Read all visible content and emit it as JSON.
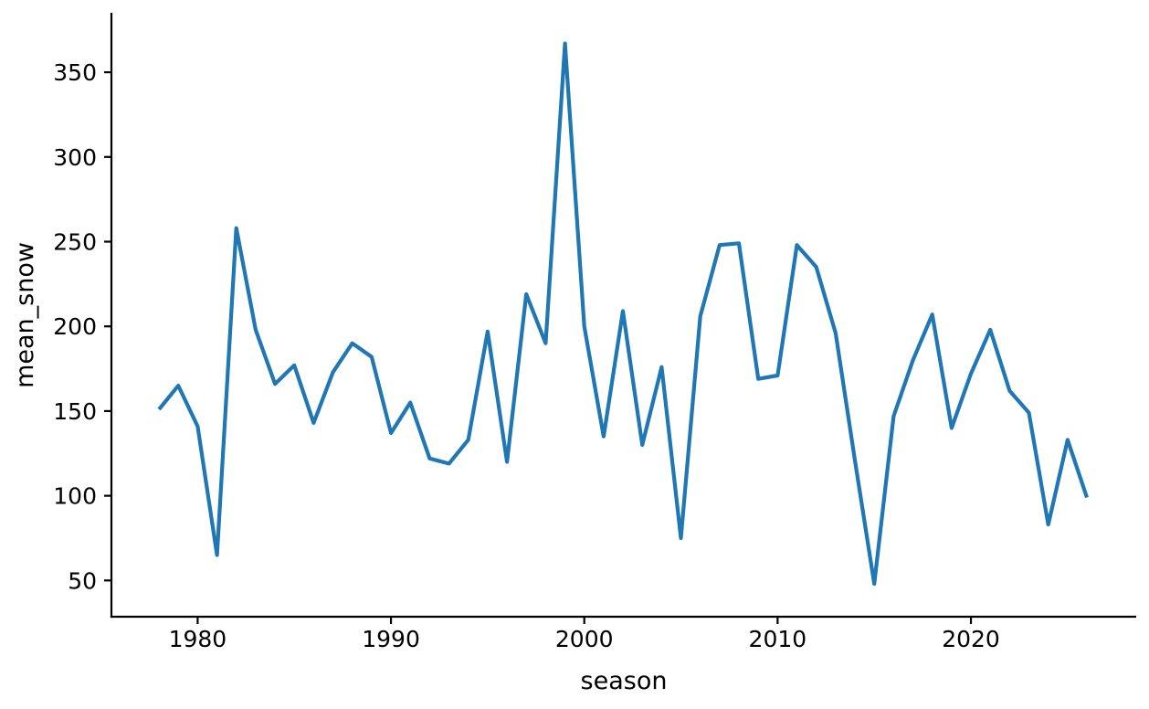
{
  "figure": {
    "background": "#ffffff",
    "text_color": "#000000"
  },
  "chart_data": {
    "type": "line",
    "title": "",
    "xlabel": "season",
    "ylabel": "mean_snow",
    "line_color": "#1f77b4",
    "grid": false,
    "legend": null,
    "x": [
      1978,
      1979,
      1980,
      1981,
      1982,
      1983,
      1984,
      1985,
      1986,
      1987,
      1988,
      1989,
      1990,
      1991,
      1992,
      1993,
      1994,
      1995,
      1996,
      1997,
      1998,
      1999,
      2000,
      2001,
      2002,
      2003,
      2004,
      2005,
      2006,
      2007,
      2008,
      2009,
      2010,
      2011,
      2012,
      2013,
      2014,
      2015,
      2016,
      2017,
      2018,
      2019,
      2020,
      2021,
      2022,
      2023,
      2024,
      2025,
      2026
    ],
    "values": [
      151,
      165,
      141,
      65,
      258,
      198,
      166,
      177,
      143,
      173,
      190,
      182,
      137,
      155,
      122,
      119,
      133,
      197,
      120,
      219,
      190,
      367,
      200,
      135,
      209,
      130,
      176,
      75,
      206,
      248,
      249,
      169,
      171,
      248,
      235,
      196,
      121,
      48,
      147,
      180,
      207,
      140,
      172,
      198,
      162,
      149,
      83,
      133,
      99
    ],
    "xticks": [
      1980,
      1990,
      2000,
      2010,
      2020
    ],
    "yticks": [
      50,
      100,
      150,
      200,
      250,
      300,
      350
    ],
    "xlim": [
      1975.54,
      2028.55
    ],
    "ylim": [
      28.6,
      385.1
    ]
  }
}
